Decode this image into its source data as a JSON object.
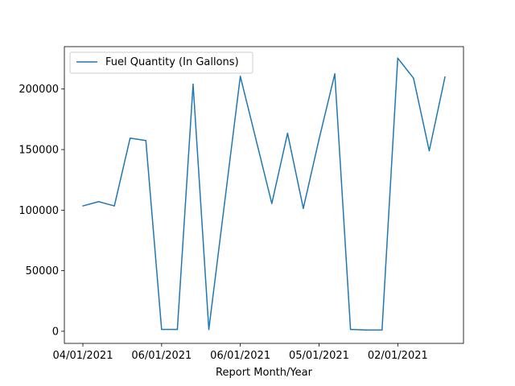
{
  "chart_data": {
    "type": "line",
    "title": "",
    "xlabel": "Report Month/Year",
    "ylabel": "",
    "ylim": [
      -10000,
      235000
    ],
    "yticks": [
      0,
      50000,
      100000,
      150000,
      200000
    ],
    "ytick_labels": [
      "0",
      "50000",
      "100000",
      "150000",
      "200000"
    ],
    "xtick_labels": [
      "04/01/2021",
      "06/01/2021",
      "06/01/2021",
      "05/01/2021",
      "02/01/2021"
    ],
    "grid": false,
    "legend_placement": "upper-left",
    "series": [
      {
        "name": "Fuel Quantity (In Gallons)",
        "color": "#1f77b4",
        "values": [
          103500,
          107000,
          103500,
          159500,
          157500,
          1500,
          1500,
          204000,
          1500,
          106000,
          210500,
          158000,
          105500,
          163500,
          101500,
          158500,
          212500,
          1500,
          1000,
          1000,
          225500,
          209000,
          149000,
          210000
        ]
      }
    ]
  }
}
